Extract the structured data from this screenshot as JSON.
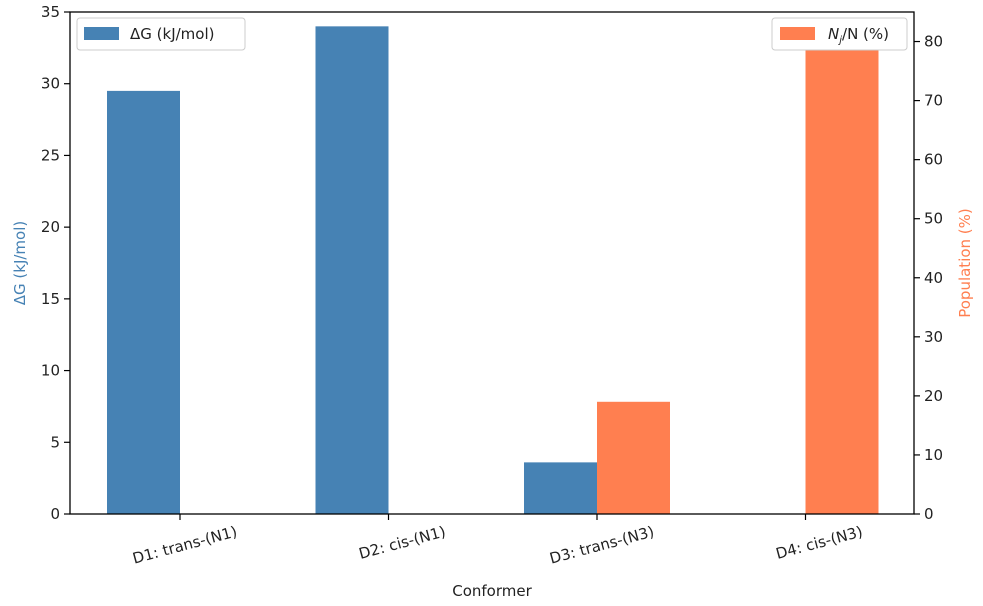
{
  "chart_data": {
    "type": "bar",
    "categories": [
      "D1: trans-(N1)",
      "D2: cis-(N1)",
      "D3: trans-(N3)",
      "D4: cis-(N3)"
    ],
    "xlabel": "Conformer",
    "series": [
      {
        "name": "ΔG (kJ/mol)",
        "axis": "left",
        "color": "#4682b4",
        "values": [
          29.5,
          34.0,
          3.6,
          0.0
        ]
      },
      {
        "name_parts": {
          "n": "N",
          "sub": "j",
          "rest": "/N (%)"
        },
        "axis": "right",
        "color": "#ff7f50",
        "values": [
          0.0,
          0.0,
          19.0,
          81.0
        ]
      }
    ],
    "y_left": {
      "label": "ΔG (kJ/mol)",
      "color": "#4682b4",
      "lim": [
        0,
        35
      ],
      "ticks": [
        0,
        5,
        10,
        15,
        20,
        25,
        30,
        35
      ]
    },
    "y_right": {
      "label": "Population (%)",
      "color": "#ff7f50",
      "lim": [
        0,
        85
      ],
      "ticks": [
        0,
        10,
        20,
        30,
        40,
        50,
        60,
        70,
        80
      ]
    },
    "legend_left": "top-left",
    "legend_right": "top-right",
    "grid": false
  }
}
